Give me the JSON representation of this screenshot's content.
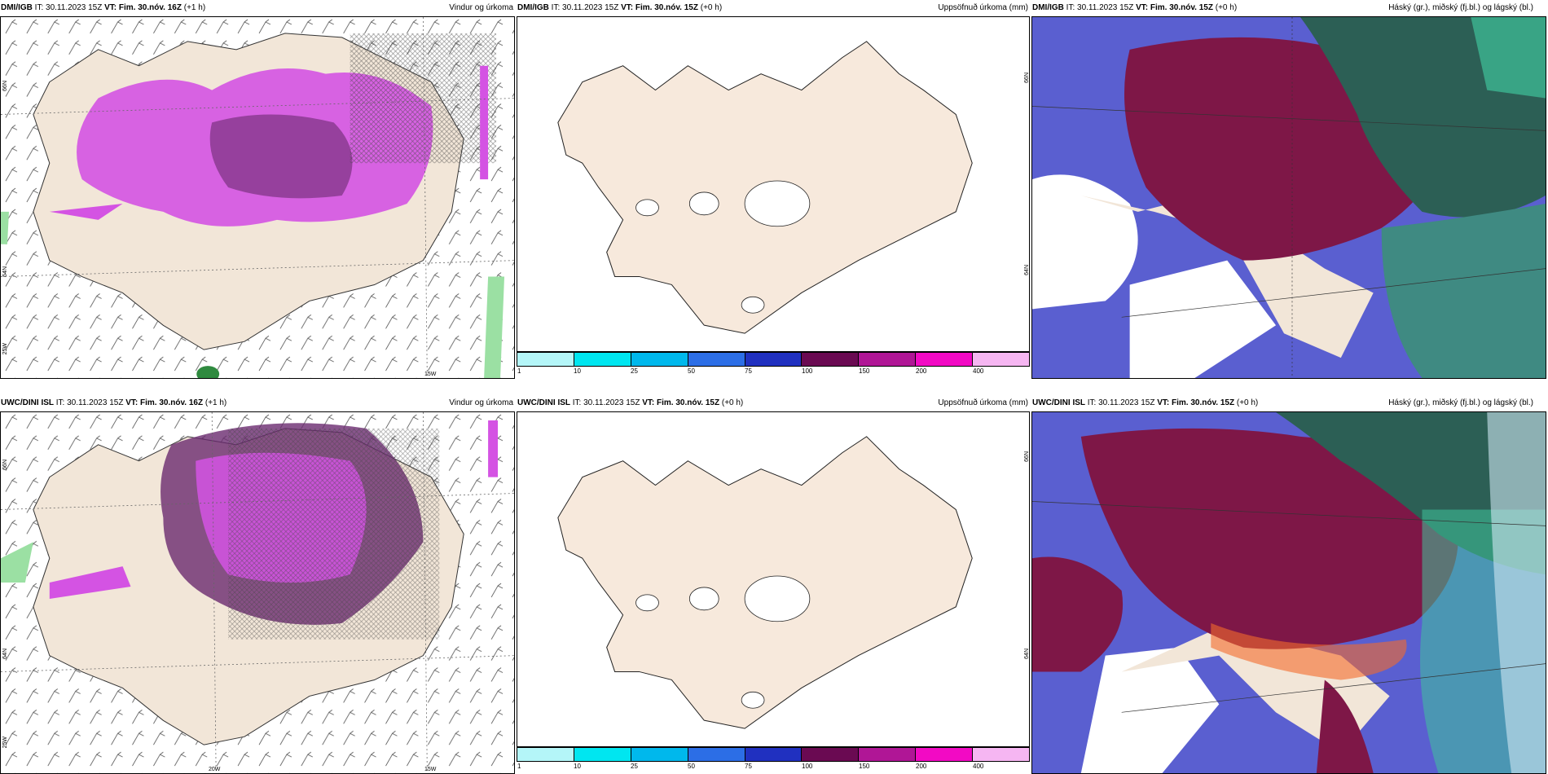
{
  "rows": [
    {
      "model": "DMI/IGB",
      "panels": [
        {
          "it_label": "IT:",
          "it": "30.11.2023 15Z",
          "vt_label": "VT:",
          "vt": "Fim. 30.nóv. 16Z",
          "lead": "(+1 h)",
          "title": "Vindur og úrkoma"
        },
        {
          "it_label": "IT:",
          "it": "30.11.2023 15Z",
          "vt_label": "VT:",
          "vt": "Fim. 30.nóv. 15Z",
          "lead": "(+0 h)",
          "title": "Uppsöfnuð úrkoma (mm)"
        },
        {
          "it_label": "IT:",
          "it": "30.11.2023 15Z",
          "vt_label": "VT:",
          "vt": "Fim. 30.nóv. 15Z",
          "lead": "(+0 h)",
          "title": "Háský (gr.), miðský (fj.bl.) og lágský (bl.)"
        }
      ],
      "lat_labels": [
        "66N",
        "64N",
        "25W"
      ],
      "lon_labels": [
        "15W"
      ]
    },
    {
      "model": "UWC/DINI ISL",
      "panels": [
        {
          "it_label": "IT:",
          "it": "30.11.2023 15Z",
          "vt_label": "VT:",
          "vt": "Fim. 30.nóv. 16Z",
          "lead": "(+1 h)",
          "title": "Vindur og úrkoma"
        },
        {
          "it_label": "IT:",
          "it": "30.11.2023 15Z",
          "vt_label": "VT:",
          "vt": "Fim. 30.nóv. 15Z",
          "lead": "(+0 h)",
          "title": "Uppsöfnuð úrkoma (mm)"
        },
        {
          "it_label": "IT:",
          "it": "30.11.2023 15Z",
          "vt_label": "VT:",
          "vt": "Fim. 30.nóv. 15Z",
          "lead": "(+0 h)",
          "title": "Háský (gr.), miðský (fj.bl.) og lágský (bl.)"
        }
      ],
      "lat_labels": [
        "66N",
        "64N",
        "25W"
      ],
      "lon_labels": [
        "20W",
        "15W"
      ]
    }
  ],
  "colorbar": {
    "labels": [
      "1",
      "10",
      "25",
      "50",
      "75",
      "100",
      "150",
      "200",
      "400"
    ],
    "colors": [
      "#b4f6f8",
      "#00e6f0",
      "#00b8ec",
      "#2c6ee6",
      "#2030c0",
      "#6a0a52",
      "#b01696",
      "#f20ac4",
      "#f6b6f2"
    ]
  },
  "mid_lat_labels": [
    "66N",
    "64N"
  ],
  "colors": {
    "land": "#f7e9dc",
    "precip": "#d453e3",
    "precip_dark": "#6a2a6f",
    "cloud_high": "#7e1747",
    "cloud_mid": "#2c5f55",
    "cloud_low": "#5a5fd0"
  }
}
